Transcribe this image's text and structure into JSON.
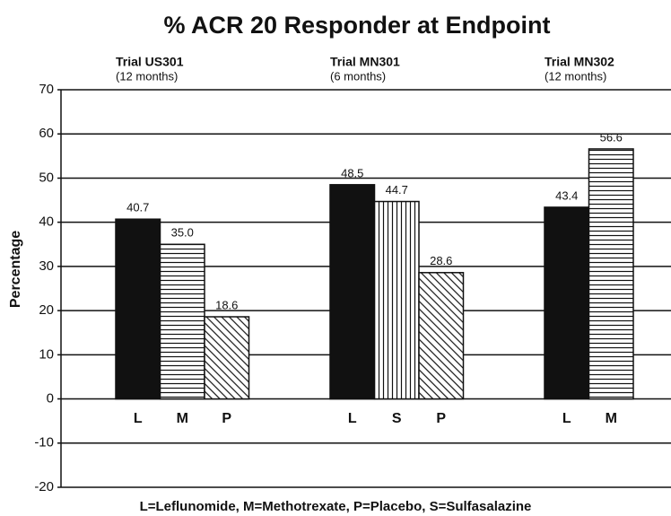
{
  "chart_data": {
    "type": "grouped_bar",
    "title": "% ACR 20 Responder at Endpoint",
    "ylabel": "Percentage",
    "ylim": [
      -20,
      70
    ],
    "yticks": [
      -20,
      -10,
      0,
      10,
      20,
      30,
      40,
      50,
      60,
      70
    ],
    "grid": true,
    "groups": [
      {
        "name": "Trial US301",
        "subtitle": "(12 months)",
        "categories": [
          "L",
          "M",
          "P"
        ],
        "values": [
          40.7,
          35.0,
          18.6
        ],
        "value_labels": [
          "40.7",
          "35.0",
          "18.6"
        ],
        "patterns": [
          "solid",
          "horizontal",
          "diagonal"
        ]
      },
      {
        "name": "Trial MN301",
        "subtitle": "(6 months)",
        "categories": [
          "L",
          "S",
          "P"
        ],
        "values": [
          48.5,
          44.7,
          28.6
        ],
        "value_labels": [
          "48.5",
          "44.7",
          "28.6"
        ],
        "patterns": [
          "solid",
          "vertical",
          "diagonal"
        ]
      },
      {
        "name": "Trial MN302",
        "subtitle": "(12 months)",
        "categories": [
          "L",
          "M"
        ],
        "values": [
          43.4,
          56.6
        ],
        "value_labels": [
          "43.4",
          "56.6"
        ],
        "patterns": [
          "solid",
          "horizontal"
        ]
      }
    ],
    "note": "L=Leflunomide,  M=Methotrexate,  P=Placebo,  S=Sulfasalazine"
  }
}
